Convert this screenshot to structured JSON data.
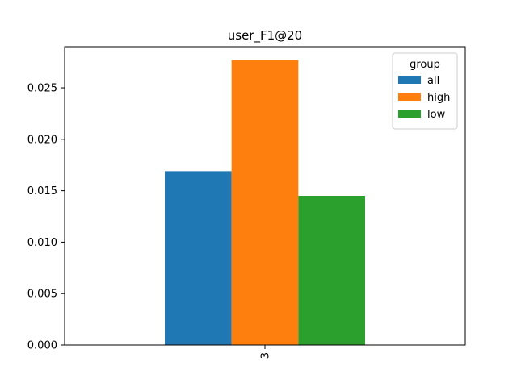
{
  "chart_data": {
    "type": "bar",
    "title": "user_F1@20",
    "xlabel": "",
    "ylabel": "",
    "categories": [
      "3"
    ],
    "series": [
      {
        "name": "all",
        "values": [
          0.0169
        ],
        "color": "#1f77b4"
      },
      {
        "name": "high",
        "values": [
          0.0277
        ],
        "color": "#ff7f0e"
      },
      {
        "name": "low",
        "values": [
          0.0145
        ],
        "color": "#2ca02c"
      }
    ],
    "ylim": [
      0,
      0.029
    ],
    "yticks": [
      "0.000",
      "0.005",
      "0.010",
      "0.015",
      "0.020",
      "0.025"
    ],
    "ytick_values": [
      0,
      0.005,
      0.01,
      0.015,
      0.02,
      0.025
    ],
    "legend": {
      "title": "group",
      "placement": "top-right"
    },
    "grid": false
  }
}
